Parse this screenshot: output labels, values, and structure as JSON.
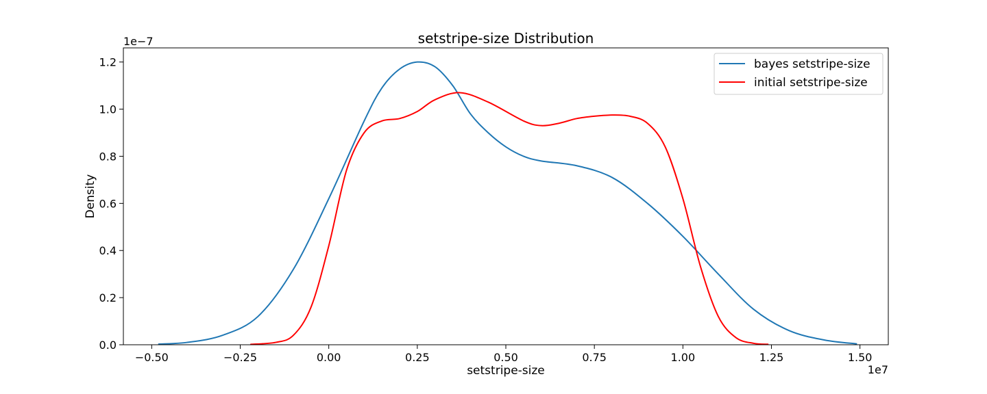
{
  "chart_data": {
    "type": "line",
    "title": "setstripe-size Distribution",
    "xlabel": "setstripe-size",
    "ylabel": "Density",
    "x_offset_label": "1e7",
    "y_offset_label": "1e−7",
    "xlim": [
      -0.58,
      1.58
    ],
    "ylim": [
      0,
      1.26
    ],
    "x_ticks": [
      -0.5,
      -0.25,
      0.0,
      0.25,
      0.5,
      0.75,
      1.0,
      1.25,
      1.5
    ],
    "x_tick_labels": [
      "−0.50",
      "−0.25",
      "0.00",
      "0.25",
      "0.50",
      "0.75",
      "1.00",
      "1.25",
      "1.50"
    ],
    "y_ticks": [
      0.0,
      0.2,
      0.4,
      0.6,
      0.8,
      1.0,
      1.2
    ],
    "y_tick_labels": [
      "0.0",
      "0.2",
      "0.4",
      "0.6",
      "0.8",
      "1.0",
      "1.2"
    ],
    "grid": false,
    "legend_position": "top-right",
    "series": [
      {
        "name": "bayes setstripe-size",
        "color": "#1f77b4",
        "x": [
          -0.48,
          -0.4,
          -0.3,
          -0.2,
          -0.1,
          0.0,
          0.1,
          0.15,
          0.2,
          0.25,
          0.3,
          0.35,
          0.4,
          0.45,
          0.5,
          0.55,
          0.6,
          0.7,
          0.8,
          0.9,
          1.0,
          1.1,
          1.2,
          1.3,
          1.4,
          1.49
        ],
        "y": [
          0.003,
          0.01,
          0.04,
          0.12,
          0.32,
          0.62,
          0.95,
          1.09,
          1.17,
          1.2,
          1.18,
          1.1,
          0.98,
          0.9,
          0.84,
          0.8,
          0.78,
          0.76,
          0.71,
          0.6,
          0.46,
          0.3,
          0.15,
          0.06,
          0.02,
          0.004
        ]
      },
      {
        "name": "initial setstripe-size",
        "color": "#ff0000",
        "x": [
          -0.22,
          -0.15,
          -0.1,
          -0.05,
          0.0,
          0.05,
          0.1,
          0.15,
          0.2,
          0.25,
          0.3,
          0.37,
          0.45,
          0.55,
          0.6,
          0.65,
          0.7,
          0.75,
          0.8,
          0.85,
          0.9,
          0.95,
          1.0,
          1.05,
          1.1,
          1.15,
          1.2,
          1.24
        ],
        "y": [
          0.002,
          0.01,
          0.04,
          0.16,
          0.42,
          0.74,
          0.9,
          0.95,
          0.96,
          0.99,
          1.04,
          1.07,
          1.03,
          0.95,
          0.93,
          0.94,
          0.96,
          0.97,
          0.975,
          0.97,
          0.94,
          0.84,
          0.62,
          0.33,
          0.12,
          0.03,
          0.006,
          0.002
        ]
      }
    ]
  }
}
